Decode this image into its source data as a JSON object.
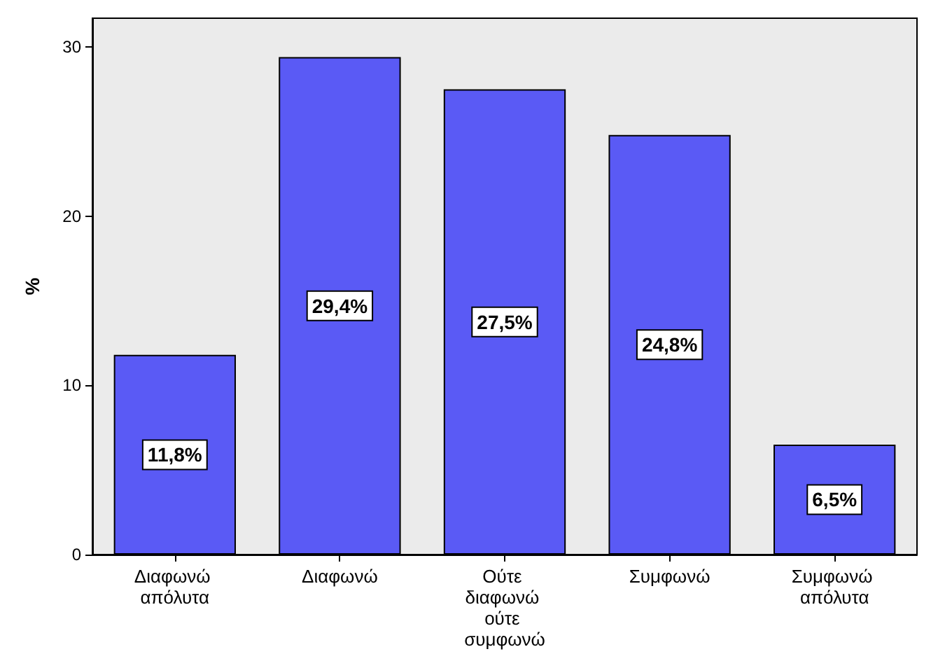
{
  "chart_data": {
    "type": "bar",
    "ylabel": "%",
    "categories": [
      "Διαφωνώ απόλυτα",
      "Διαφωνώ",
      "Ούτε διαφωνώ ούτε συμφωνώ",
      "Συμφωνώ",
      "Συμφωνώ απόλυτα"
    ],
    "values": [
      11.8,
      29.4,
      27.5,
      24.8,
      6.5
    ],
    "value_labels": [
      "11,8%",
      "29,4%",
      "27,5%",
      "24,8%",
      "6,5%"
    ],
    "color": "#5a5af5",
    "ylim": [
      0,
      31.7
    ],
    "yticks": [
      0,
      10,
      20,
      30
    ],
    "grid": false
  }
}
